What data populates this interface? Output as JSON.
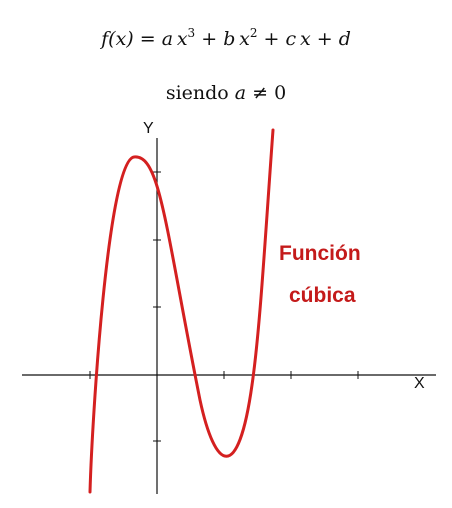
{
  "formula": {
    "fx": "f(x)",
    "eq": " = ",
    "a": "a",
    "x": "x",
    "exp3": "3",
    "plus": " + ",
    "b": "b",
    "exp2": "2",
    "c": "c",
    "d": "d",
    "siendo": "siendo ",
    "neq": " ≠ 0"
  },
  "axes": {
    "x_label": "X",
    "y_label": "Y"
  },
  "curve": {
    "label_line1": "Función",
    "label_line2": "cúbica",
    "color": "#d42020"
  },
  "colors": {
    "axis": "#111111",
    "curve": "#d42020",
    "label": "#c41a1a"
  }
}
